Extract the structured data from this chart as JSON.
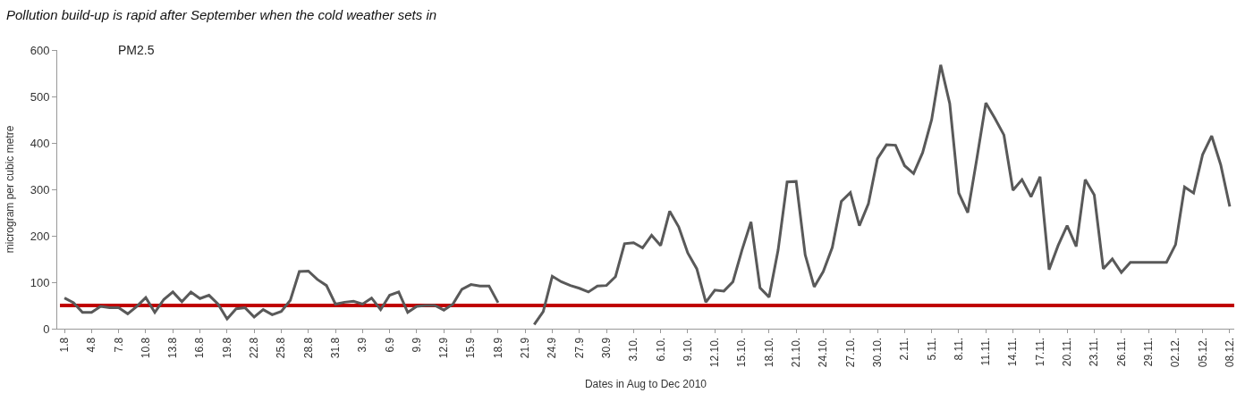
{
  "chart_data": {
    "type": "line",
    "title": "Pollution build-up is rapid after September when the cold weather sets in",
    "xlabel": "Dates in Aug to Dec 2010",
    "ylabel": "microgram per cubic metre",
    "annotations": [
      "PM2.5"
    ],
    "categories": [
      "1.8",
      null,
      null,
      "4.8",
      null,
      null,
      "7.8",
      null,
      null,
      "10.8",
      null,
      null,
      "13.8",
      null,
      null,
      "16.8",
      null,
      null,
      "19.8",
      null,
      null,
      "22.8",
      null,
      null,
      "25.8",
      null,
      null,
      "28.8",
      null,
      null,
      "31.8",
      null,
      null,
      "3.9",
      null,
      null,
      "6.9",
      null,
      null,
      "9.9",
      null,
      null,
      "12.9",
      null,
      null,
      "15.9",
      null,
      null,
      "18.9",
      null,
      null,
      "21.9",
      null,
      null,
      "24.9",
      null,
      null,
      "27.9",
      null,
      null,
      "30.9",
      null,
      null,
      "3.10.",
      null,
      null,
      "6.10.",
      null,
      null,
      "9.10.",
      null,
      null,
      "12.10.",
      null,
      null,
      "15.10.",
      null,
      null,
      "18.10.",
      null,
      null,
      "21.10.",
      null,
      null,
      "24.10.",
      null,
      null,
      "27.10.",
      null,
      null,
      "30.10.",
      null,
      null,
      "2.11.",
      null,
      null,
      "5.11.",
      null,
      null,
      "8.11.",
      null,
      null,
      "11.11.",
      null,
      null,
      "14.11.",
      null,
      null,
      "17.11.",
      null,
      null,
      "20.11.",
      null,
      null,
      "23.11.",
      null,
      null,
      "26.11.",
      null,
      null,
      "29.11.",
      null,
      null,
      "02.12.",
      null,
      null,
      "05.12.",
      null,
      null,
      "08.12."
    ],
    "series": [
      {
        "color": "#595959",
        "values": [
          66,
          56,
          35,
          35,
          48,
          45,
          45,
          32,
          48,
          67,
          35,
          63,
          79,
          58,
          79,
          65,
          72,
          53,
          21,
          43,
          45,
          25,
          41,
          30,
          37,
          61,
          123,
          124,
          106,
          93,
          53,
          57,
          59,
          53,
          66,
          41,
          72,
          79,
          35,
          48,
          50,
          50,
          40,
          53,
          85,
          95,
          92,
          92,
          56,
          null,
          null,
          null,
          9,
          37,
          113,
          101,
          93,
          87,
          79,
          92,
          93,
          112,
          183,
          185,
          174,
          201,
          179,
          253,
          219,
          163,
          129,
          57,
          83,
          81,
          101,
          169,
          230,
          88,
          68,
          169,
          316,
          317,
          159,
          90,
          123,
          175,
          274,
          293,
          222,
          269,
          366,
          396,
          395,
          351,
          334,
          379,
          450,
          568,
          485,
          292,
          250,
          366,
          486,
          453,
          417,
          298,
          321,
          284,
          327,
          127,
          179,
          222,
          177,
          321,
          288,
          129,
          150,
          121,
          143,
          143,
          143,
          143,
          143,
          181,
          305,
          292,
          375,
          415,
          353,
          263
        ]
      }
    ],
    "ref_lines": [
      {
        "axis": "y",
        "value": 50,
        "color": "#c00000"
      }
    ],
    "ylim": [
      0,
      600
    ],
    "yticks": [
      0,
      100,
      200,
      300,
      400,
      500,
      600
    ]
  }
}
